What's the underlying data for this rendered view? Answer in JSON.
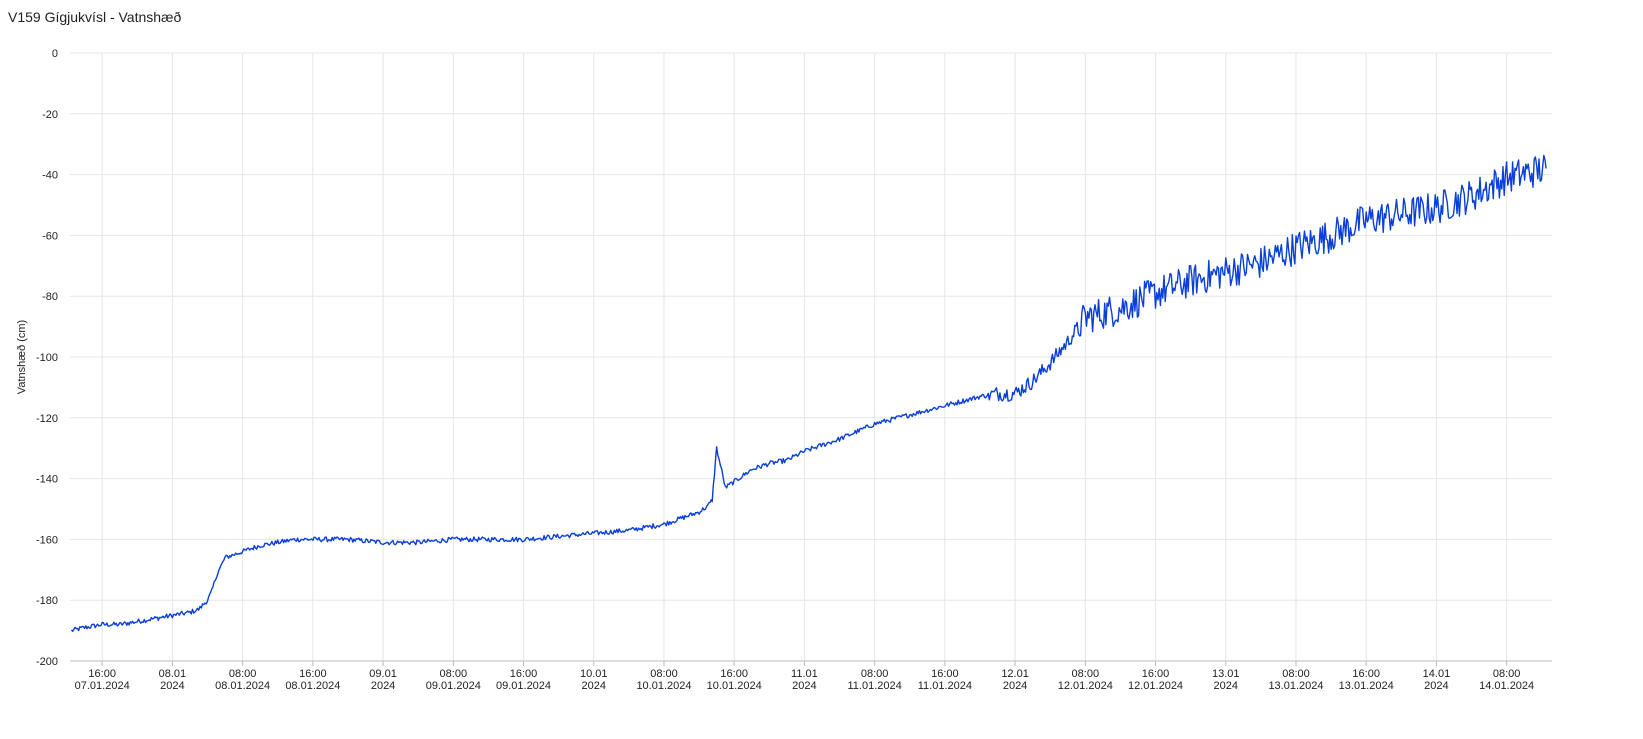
{
  "chart_data": {
    "type": "line",
    "title": "V159 Gígjukvísl - Vatnshæð",
    "ylabel": "Vatnshæð (cm)",
    "xlabel": "",
    "ylim": [
      -200,
      0
    ],
    "y_ticks": [
      0,
      -20,
      -40,
      -60,
      -80,
      -100,
      -120,
      -140,
      -160,
      -180,
      -200
    ],
    "xlim": [
      "2024-01-07T12:20",
      "2024-01-14T13:10"
    ],
    "grid": true,
    "legend": "none",
    "line_color": "#0a3fd8",
    "x_ticks": [
      {
        "t": "2024-01-07T16:00",
        "line1": "16:00",
        "line2": "07.01.2024"
      },
      {
        "t": "2024-01-08T00:00",
        "line1": "08.01",
        "line2": "2024"
      },
      {
        "t": "2024-01-08T08:00",
        "line1": "08:00",
        "line2": "08.01.2024"
      },
      {
        "t": "2024-01-08T16:00",
        "line1": "16:00",
        "line2": "08.01.2024"
      },
      {
        "t": "2024-01-09T00:00",
        "line1": "09.01",
        "line2": "2024"
      },
      {
        "t": "2024-01-09T08:00",
        "line1": "08:00",
        "line2": "09.01.2024"
      },
      {
        "t": "2024-01-09T16:00",
        "line1": "16:00",
        "line2": "09.01.2024"
      },
      {
        "t": "2024-01-10T00:00",
        "line1": "10.01",
        "line2": "2024"
      },
      {
        "t": "2024-01-10T08:00",
        "line1": "08:00",
        "line2": "10.01.2024"
      },
      {
        "t": "2024-01-10T16:00",
        "line1": "16:00",
        "line2": "10.01.2024"
      },
      {
        "t": "2024-01-11T00:00",
        "line1": "11.01",
        "line2": "2024"
      },
      {
        "t": "2024-01-11T08:00",
        "line1": "08:00",
        "line2": "11.01.2024"
      },
      {
        "t": "2024-01-11T16:00",
        "line1": "16:00",
        "line2": "11.01.2024"
      },
      {
        "t": "2024-01-12T00:00",
        "line1": "12.01",
        "line2": "2024"
      },
      {
        "t": "2024-01-12T08:00",
        "line1": "08:00",
        "line2": "12.01.2024"
      },
      {
        "t": "2024-01-12T16:00",
        "line1": "16:00",
        "line2": "12.01.2024"
      },
      {
        "t": "2024-01-13T00:00",
        "line1": "13.01",
        "line2": "2024"
      },
      {
        "t": "2024-01-13T08:00",
        "line1": "08:00",
        "line2": "13.01.2024"
      },
      {
        "t": "2024-01-13T16:00",
        "line1": "16:00",
        "line2": "13.01.2024"
      },
      {
        "t": "2024-01-14T00:00",
        "line1": "14.01",
        "line2": "2024"
      },
      {
        "t": "2024-01-14T08:00",
        "line1": "08:00",
        "line2": "14.01.2024"
      }
    ],
    "series": [
      {
        "x": [
          "2024-01-07T12:30",
          "2024-01-07T14:00",
          "2024-01-07T16:00",
          "2024-01-07T18:00",
          "2024-01-07T20:00",
          "2024-01-07T22:00",
          "2024-01-08T00:00",
          "2024-01-08T02:00",
          "2024-01-08T03:00",
          "2024-01-08T04:00",
          "2024-01-08T04:30",
          "2024-01-08T05:00",
          "2024-01-08T06:00",
          "2024-01-08T08:00",
          "2024-01-08T10:00",
          "2024-01-08T12:00",
          "2024-01-08T14:00",
          "2024-01-08T16:00",
          "2024-01-08T20:00",
          "2024-01-09T00:00",
          "2024-01-09T04:00",
          "2024-01-09T08:00",
          "2024-01-09T12:00",
          "2024-01-09T16:00",
          "2024-01-09T20:00",
          "2024-01-10T00:00",
          "2024-01-10T04:00",
          "2024-01-10T08:00",
          "2024-01-10T10:00",
          "2024-01-10T12:00",
          "2024-01-10T13:00",
          "2024-01-10T13:30",
          "2024-01-10T14:00",
          "2024-01-10T15:00",
          "2024-01-10T16:00",
          "2024-01-10T18:00",
          "2024-01-10T20:00",
          "2024-01-10T22:00",
          "2024-01-11T00:00",
          "2024-01-11T04:00",
          "2024-01-11T08:00",
          "2024-01-11T12:00",
          "2024-01-11T16:00",
          "2024-01-11T20:00",
          "2024-01-11T22:00",
          "2024-01-12T00:00",
          "2024-01-12T02:00",
          "2024-01-12T04:00",
          "2024-01-12T06:00",
          "2024-01-12T08:00",
          "2024-01-12T12:00",
          "2024-01-12T16:00",
          "2024-01-12T20:00",
          "2024-01-13T00:00",
          "2024-01-13T04:00",
          "2024-01-13T08:00",
          "2024-01-13T12:00",
          "2024-01-13T16:00",
          "2024-01-13T20:00",
          "2024-01-14T00:00",
          "2024-01-14T04:00",
          "2024-01-14T08:00",
          "2024-01-14T12:30"
        ],
        "values": [
          -190,
          -189,
          -188,
          -188,
          -187,
          -186,
          -185,
          -184,
          -183,
          -180,
          -177,
          -172,
          -166,
          -164,
          -162,
          -161,
          -160,
          -160,
          -160,
          -161,
          -161,
          -160,
          -160,
          -160,
          -159,
          -158,
          -157,
          -155,
          -153,
          -151,
          -149,
          -147,
          -130,
          -143,
          -141,
          -137,
          -135,
          -134,
          -131,
          -127,
          -122,
          -119,
          -116,
          -113,
          -112,
          -112,
          -108,
          -102,
          -95,
          -87,
          -84,
          -79,
          -75,
          -72,
          -69,
          -64,
          -60,
          -55,
          -53,
          -51,
          -47,
          -41,
          -38
        ]
      }
    ]
  }
}
